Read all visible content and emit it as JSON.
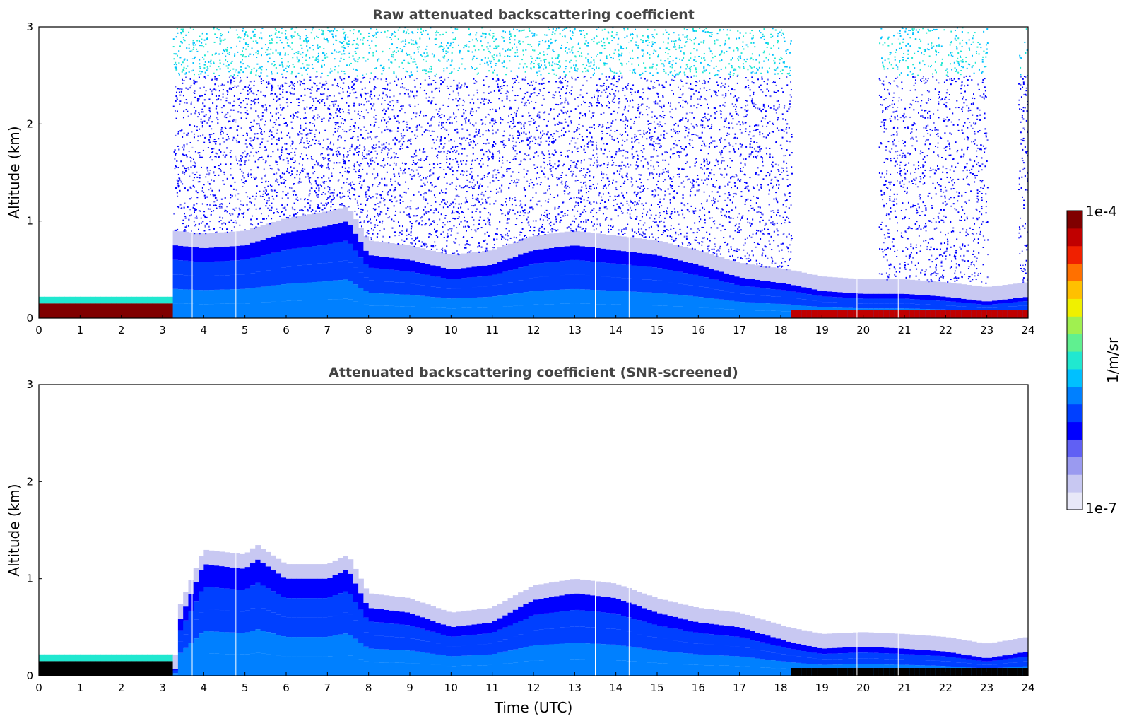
{
  "colors": {
    "background": "#ffffff",
    "title": "#444444",
    "colormap": [
      "#e8e8f8",
      "#c8c8f2",
      "#9a9af0",
      "#6060f4",
      "#0000ff",
      "#0040ff",
      "#0080ff",
      "#00c0ff",
      "#20e8d0",
      "#60f090",
      "#a0f050",
      "#f0f000",
      "#ffc000",
      "#ff7000",
      "#f02000",
      "#c00000",
      "#800000"
    ],
    "underground": "#000000"
  },
  "colorbar": {
    "label": "1/m/sr",
    "max_label": "1e-4",
    "min_label": "1e-7",
    "scale": "log",
    "range": [
      1e-07,
      0.0001
    ]
  },
  "chart_data": [
    {
      "type": "heatmap",
      "title": "Raw attenuated backscattering coefficient",
      "xlabel": "",
      "ylabel": "Altitude (km)",
      "xlim": [
        0,
        24
      ],
      "ylim": [
        0,
        3
      ],
      "xticks": [
        "0",
        "1",
        "2",
        "3",
        "4",
        "5",
        "6",
        "7",
        "8",
        "9",
        "10",
        "11",
        "12",
        "13",
        "14",
        "15",
        "16",
        "17",
        "18",
        "19",
        "20",
        "21",
        "22",
        "23",
        "24"
      ],
      "yticks": [
        "0",
        "1",
        "2",
        "3"
      ],
      "x_gaps_utc": [
        0.0,
        3.3
      ],
      "data_gap_lines_utc": [
        3.72,
        4.78,
        13.5,
        14.32,
        19.85,
        20.85
      ],
      "boundary_layer_top_km": [
        [
          3.3,
          0.75
        ],
        [
          4.0,
          0.72
        ],
        [
          5.0,
          0.75
        ],
        [
          6.0,
          0.88
        ],
        [
          7.0,
          0.95
        ],
        [
          7.5,
          1.0
        ],
        [
          8.0,
          0.65
        ],
        [
          9.0,
          0.6
        ],
        [
          10.0,
          0.5
        ],
        [
          11.0,
          0.55
        ],
        [
          12.0,
          0.7
        ],
        [
          13.0,
          0.75
        ],
        [
          14.0,
          0.7
        ],
        [
          15.0,
          0.65
        ],
        [
          16.0,
          0.55
        ],
        [
          17.0,
          0.42
        ],
        [
          18.2,
          0.35
        ],
        [
          19.0,
          0.28
        ],
        [
          20.0,
          0.25
        ],
        [
          21.0,
          0.25
        ],
        [
          22.0,
          0.22
        ],
        [
          23.0,
          0.17
        ],
        [
          24.0,
          0.22
        ]
      ],
      "low_cloud_layer_km": [
        [
          0.0,
          3.3,
          0.0,
          0.25
        ],
        [
          18.2,
          24.0,
          0.0,
          0.08
        ]
      ],
      "noise_free_columns_utc": [
        [
          0.0,
          3.3
        ],
        [
          18.2,
          19.9
        ],
        [
          19.9,
          20.4
        ],
        [
          23.0,
          23.8
        ]
      ],
      "value_range": [
        1e-07,
        0.0001
      ]
    },
    {
      "type": "heatmap",
      "title": "Attenuated backscattering coefficient (SNR-screened)",
      "xlabel": "Time (UTC)",
      "ylabel": "Altitude (km)",
      "xlim": [
        0,
        24
      ],
      "ylim": [
        0,
        3
      ],
      "xticks": [
        "0",
        "1",
        "2",
        "3",
        "4",
        "5",
        "6",
        "7",
        "8",
        "9",
        "10",
        "11",
        "12",
        "13",
        "14",
        "15",
        "16",
        "17",
        "18",
        "19",
        "20",
        "21",
        "22",
        "23",
        "24"
      ],
      "yticks": [
        "0",
        "1",
        "2",
        "3"
      ],
      "data_gap_lines_utc": [
        3.72,
        4.78,
        13.5,
        14.32,
        19.85,
        20.85
      ],
      "aerosol_top_km": [
        [
          3.3,
          0.0
        ],
        [
          3.4,
          0.55
        ],
        [
          4.0,
          1.15
        ],
        [
          5.0,
          1.1
        ],
        [
          5.3,
          1.2
        ],
        [
          6.0,
          1.0
        ],
        [
          7.0,
          1.0
        ],
        [
          7.5,
          1.1
        ],
        [
          8.0,
          0.7
        ],
        [
          9.0,
          0.65
        ],
        [
          10.0,
          0.5
        ],
        [
          11.0,
          0.55
        ],
        [
          12.0,
          0.78
        ],
        [
          13.0,
          0.85
        ],
        [
          14.0,
          0.8
        ],
        [
          15.0,
          0.65
        ],
        [
          16.0,
          0.55
        ],
        [
          17.0,
          0.5
        ],
        [
          18.2,
          0.35
        ],
        [
          19.0,
          0.28
        ],
        [
          20.0,
          0.3
        ],
        [
          21.0,
          0.28
        ],
        [
          22.0,
          0.25
        ],
        [
          23.0,
          0.18
        ],
        [
          24.0,
          0.25
        ]
      ],
      "low_cloud_layer_km": [
        [
          0.0,
          3.3,
          0.0,
          0.22
        ],
        [
          18.2,
          24.0,
          0.0,
          0.08
        ]
      ],
      "value_range": [
        1e-07,
        0.0001
      ]
    }
  ]
}
